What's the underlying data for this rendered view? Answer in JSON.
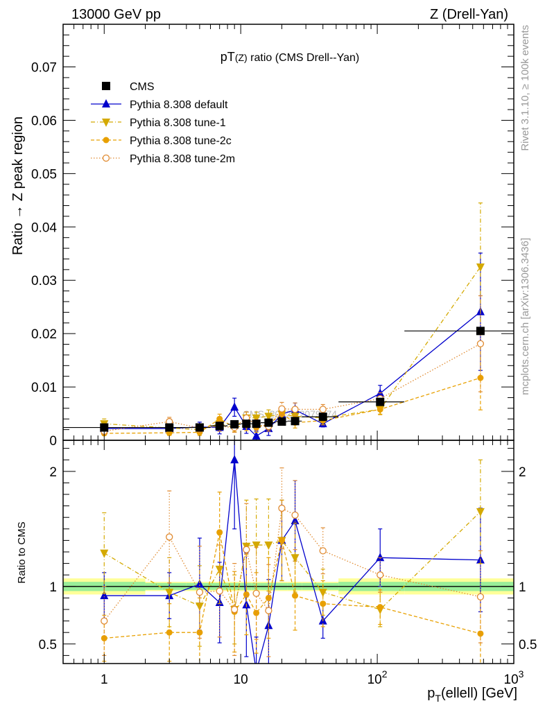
{
  "header": {
    "left": "13000 GeV pp",
    "right": "Z (Drell-Yan)"
  },
  "side_labels": {
    "rivet": "Rivet 3.1.10, ≥ 100k events",
    "mcplots": "mcplots.cern.ch [arXiv:1306.3436]"
  },
  "watermark": "CMS_2022_I2079374",
  "chart_data": {
    "type": "line",
    "title": "pT(Z) ratio (CMS Drell--Yan)",
    "xlabel": "p_T(ellell) [GeV]",
    "ylabel_main": "Ratio → Z peak region",
    "ylabel_ratio": "Ratio to CMS",
    "x_scale": "log",
    "xlim": [
      0.5,
      1000
    ],
    "ylim_main": [
      0,
      0.078
    ],
    "ylim_ratio": [
      0.33,
      2.27
    ],
    "x_ticks": [
      {
        "value": 1,
        "label": "1"
      },
      {
        "value": 10,
        "label": "10"
      },
      {
        "value": 100,
        "label": "10",
        "sup": "2"
      },
      {
        "value": 1000,
        "label": "10",
        "sup": "3"
      }
    ],
    "y_ticks_main": [
      {
        "value": 0,
        "label": "0"
      },
      {
        "value": 0.01,
        "label": "0.01"
      },
      {
        "value": 0.02,
        "label": "0.02"
      },
      {
        "value": 0.03,
        "label": "0.03"
      },
      {
        "value": 0.04,
        "label": "0.04"
      },
      {
        "value": 0.05,
        "label": "0.05"
      },
      {
        "value": 0.06,
        "label": "0.06"
      },
      {
        "value": 0.07,
        "label": "0.07"
      }
    ],
    "y_ticks_ratio": [
      {
        "value": 0.5,
        "label": "0.5"
      },
      {
        "value": 1,
        "label": "1"
      },
      {
        "value": 2,
        "label": "2"
      }
    ],
    "x": [
      1,
      3,
      5,
      7,
      9,
      11,
      13,
      16,
      20,
      25,
      40,
      105,
      570
    ],
    "x_low": [
      0.5,
      2,
      4,
      6,
      8,
      10,
      12,
      14,
      18,
      22,
      28,
      52,
      158
    ],
    "x_high": [
      2,
      4,
      6,
      8,
      10,
      12,
      14,
      18,
      22,
      28,
      52,
      158,
      1000
    ],
    "band_inner": [
      0.04,
      0.03,
      0.03,
      0.03,
      0.03,
      0.03,
      0.03,
      0.03,
      0.03,
      0.03,
      0.03,
      0.04,
      0.04
    ],
    "band_outer": [
      0.07,
      0.04,
      0.04,
      0.04,
      0.04,
      0.04,
      0.04,
      0.04,
      0.04,
      0.04,
      0.04,
      0.07,
      0.07
    ],
    "series": [
      {
        "name": "CMS",
        "role": "data",
        "color": "#000000",
        "marker": "square",
        "values": [
          0.0024,
          0.0024,
          0.0024,
          0.0027,
          0.003,
          0.0031,
          0.0031,
          0.0033,
          0.0035,
          0.0036,
          0.0044,
          0.0072,
          0.0205
        ]
      },
      {
        "name": "Pythia 8.308 default",
        "color": "#0000cc",
        "marker": "triangle-up",
        "dash": "",
        "values": [
          0.0022,
          0.0022,
          0.0025,
          0.0024,
          0.0062,
          0.0026,
          0.0008,
          0.0022,
          0.0049,
          0.0057,
          0.0031,
          0.0088,
          0.0241
        ],
        "err": [
          0.0005,
          0.0005,
          0.0009,
          0.0012,
          0.0017,
          0.0013,
          0.0009,
          0.0013,
          0.0012,
          0.0013,
          0.0006,
          0.0015,
          0.011
        ],
        "ratio": [
          0.92,
          0.92,
          1.02,
          0.86,
          2.1,
          0.84,
          0.26,
          0.66,
          1.4,
          1.57,
          0.7,
          1.25,
          1.23
        ],
        "ratio_err": [
          0.2,
          0.2,
          0.4,
          0.35,
          0.6,
          0.45,
          0.3,
          0.4,
          0.35,
          0.35,
          0.15,
          0.25,
          0.45
        ]
      },
      {
        "name": "Pythia 8.308 tune-1",
        "color": "#d4a900",
        "marker": "triangle-down",
        "dash": "6,3,1,3",
        "values": [
          0.0031,
          0.0023,
          0.002,
          0.0031,
          0.0024,
          0.0042,
          0.0042,
          0.0045,
          0.0049,
          0.0045,
          0.0042,
          0.0058,
          0.0325
        ],
        "err": [
          0.0009,
          0.0008,
          0.0007,
          0.0008,
          0.0008,
          0.0011,
          0.0011,
          0.0012,
          0.001,
          0.001,
          0.0008,
          0.0009,
          0.012
        ],
        "ratio": [
          1.29,
          0.95,
          0.83,
          1.15,
          0.8,
          1.35,
          1.36,
          1.36,
          1.4,
          1.25,
          0.95,
          0.8,
          1.65
        ],
        "ratio_err": [
          0.35,
          0.3,
          0.35,
          0.3,
          0.3,
          0.4,
          0.4,
          0.4,
          0.35,
          0.3,
          0.2,
          0.15,
          0.45
        ]
      },
      {
        "name": "Pythia 8.308 tune-2c",
        "color": "#e8a000",
        "marker": "circle",
        "dash": "5,3",
        "values": [
          0.0013,
          0.0014,
          0.0015,
          0.004,
          0.0024,
          0.0028,
          0.0024,
          0.003,
          0.0049,
          0.0033,
          0.0037,
          0.0058,
          0.0117
        ],
        "err": [
          0.0004,
          0.0005,
          0.0006,
          0.0009,
          0.0009,
          0.001,
          0.0009,
          0.001,
          0.0012,
          0.001,
          0.0008,
          0.001,
          0.006
        ],
        "ratio": [
          0.55,
          0.6,
          0.6,
          1.47,
          0.78,
          0.93,
          0.77,
          0.9,
          1.4,
          0.92,
          0.85,
          0.82,
          0.59
        ],
        "ratio_err": [
          0.2,
          0.25,
          0.3,
          0.35,
          0.35,
          0.35,
          0.35,
          0.35,
          0.35,
          0.3,
          0.2,
          0.15,
          0.3
        ]
      },
      {
        "name": "Pythia 8.308 tune-2m",
        "color": "#e08a30",
        "marker": "open-circle",
        "dash": "1.5,2.5",
        "values": [
          0.0017,
          0.0035,
          0.0023,
          0.0026,
          0.0024,
          0.0042,
          0.0029,
          0.0026,
          0.0059,
          0.0058,
          0.0058,
          0.0078,
          0.0181
        ],
        "err": [
          0.0006,
          0.0008,
          0.0008,
          0.0009,
          0.0009,
          0.0011,
          0.001,
          0.0009,
          0.0012,
          0.0012,
          0.0009,
          0.0011,
          0.009
        ],
        "ratio": [
          0.7,
          1.43,
          0.95,
          0.96,
          0.8,
          1.32,
          0.94,
          0.79,
          1.68,
          1.62,
          1.31,
          1.1,
          0.91
        ],
        "ratio_err": [
          0.3,
          0.4,
          0.4,
          0.4,
          0.4,
          0.4,
          0.4,
          0.4,
          0.35,
          0.3,
          0.2,
          0.15,
          0.4
        ]
      }
    ]
  }
}
